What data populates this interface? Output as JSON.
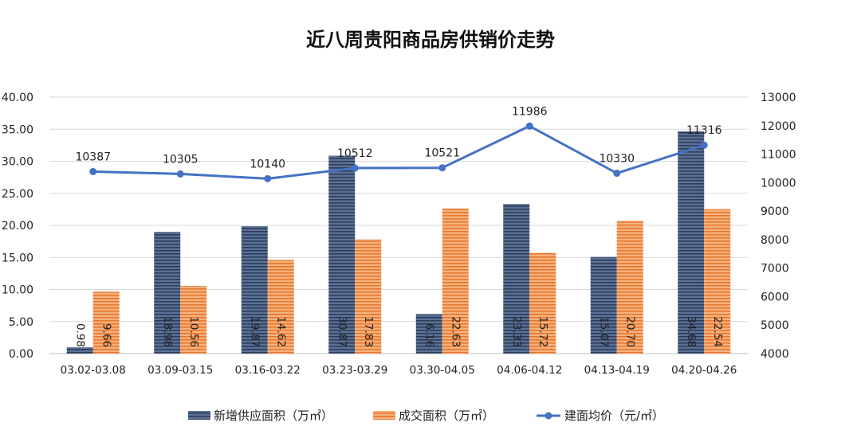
{
  "chart_data": {
    "type": "bar",
    "title": "近八周贵阳商品房供销价走势",
    "categories": [
      "03.02-03.08",
      "03.09-03.15",
      "03.16-03.22",
      "03.23-03.29",
      "03.30-04.05",
      "04.06-04.12",
      "04.13-04.19",
      "04.20-04.26"
    ],
    "series": [
      {
        "name": "新增供应面积（万㎡）",
        "type": "bar",
        "axis": "left",
        "color": "#44546a",
        "values": [
          0.98,
          18.98,
          19.87,
          30.87,
          6.16,
          23.33,
          15.07,
          34.68
        ],
        "labels": [
          "0.98",
          "18.98",
          "19.87",
          "30.87",
          "6.16",
          "23.33",
          "15.07",
          "34.68"
        ]
      },
      {
        "name": "成交面积（万㎡）",
        "type": "bar",
        "axis": "left",
        "color": "#ed7d31",
        "values": [
          9.66,
          10.56,
          14.62,
          17.83,
          22.63,
          15.72,
          20.7,
          22.54
        ],
        "labels": [
          "9.66",
          "10.56",
          "14.62",
          "17.83",
          "22.63",
          "15.72",
          "20.70",
          "22.54"
        ]
      },
      {
        "name": "建面均价（元/㎡）",
        "type": "line",
        "axis": "right",
        "color": "#4472c4",
        "values": [
          10387,
          10305,
          10140,
          10512,
          10521,
          11986,
          10330,
          11316
        ],
        "labels": [
          "10387",
          "10305",
          "10140",
          "10512",
          "10521",
          "11986",
          "10330",
          "11316"
        ]
      }
    ],
    "y_left": {
      "min": 0,
      "max": 40,
      "step": 5,
      "ticks": [
        "0.00",
        "5.00",
        "10.00",
        "15.00",
        "20.00",
        "25.00",
        "30.00",
        "35.00",
        "40.00"
      ]
    },
    "y_right": {
      "min": 4000,
      "max": 13000,
      "step": 1000,
      "ticks": [
        "4000",
        "5000",
        "6000",
        "7000",
        "8000",
        "9000",
        "10000",
        "11000",
        "12000",
        "13000"
      ]
    },
    "grid": true,
    "legend": "bottom"
  }
}
